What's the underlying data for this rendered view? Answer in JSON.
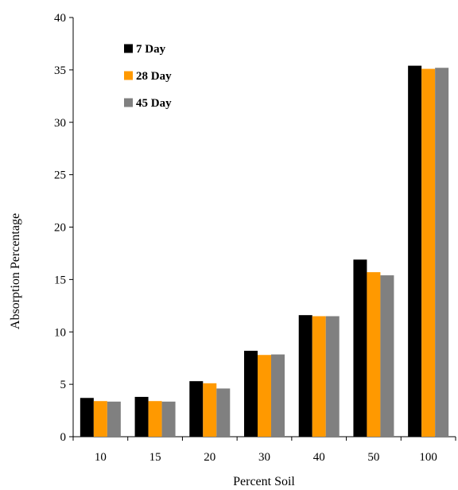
{
  "chart_data": {
    "type": "bar",
    "title": "",
    "xlabel": "Percent Soil",
    "ylabel": "Absorption Percentage",
    "categories": [
      "10",
      "15",
      "20",
      "30",
      "40",
      "50",
      "100"
    ],
    "series": [
      {
        "name": "7 Day",
        "color": "#000000",
        "values": [
          3.7,
          3.8,
          5.3,
          8.2,
          11.6,
          16.9,
          35.4
        ]
      },
      {
        "name": "28 Day",
        "color": "#ff9900",
        "values": [
          3.4,
          3.4,
          5.1,
          7.8,
          11.5,
          15.7,
          35.1
        ]
      },
      {
        "name": "45 Day",
        "color": "#808080",
        "values": [
          3.35,
          3.35,
          4.6,
          7.85,
          11.5,
          15.4,
          35.2
        ]
      }
    ],
    "ylim": [
      0,
      40
    ],
    "yticks": [
      0,
      5,
      10,
      15,
      20,
      25,
      30,
      35,
      40
    ],
    "grid": false,
    "legend_position": "top-left"
  }
}
